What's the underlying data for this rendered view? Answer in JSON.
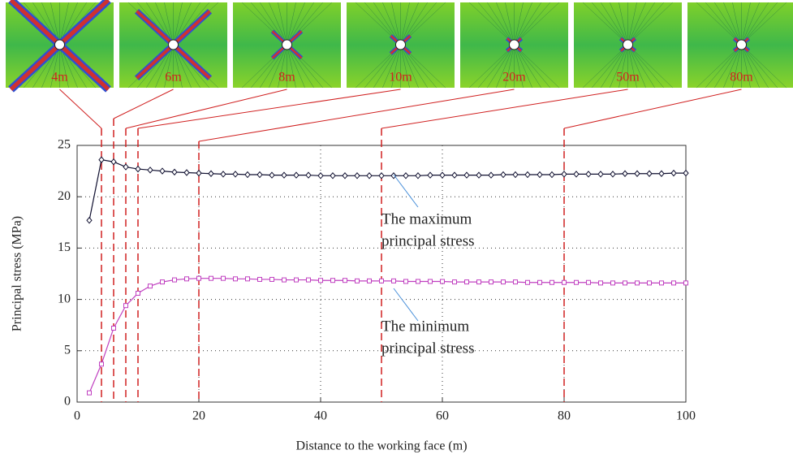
{
  "chart_data": {
    "type": "line",
    "x_label": "Distance to the working face (m)",
    "y_label": "Principal stress (MPa)",
    "x": [
      2,
      4,
      6,
      8,
      10,
      12,
      14,
      16,
      18,
      20,
      22,
      24,
      26,
      28,
      30,
      32,
      34,
      36,
      38,
      40,
      42,
      44,
      46,
      48,
      50,
      52,
      54,
      56,
      58,
      60,
      62,
      64,
      66,
      68,
      70,
      72,
      74,
      76,
      78,
      80,
      82,
      84,
      86,
      88,
      90,
      92,
      94,
      96,
      98,
      100
    ],
    "series": [
      {
        "color": "#101030",
        "marker": "diamond",
        "values": [
          17.7,
          23.6,
          23.4,
          22.9,
          22.7,
          22.6,
          22.5,
          22.4,
          22.35,
          22.3,
          22.25,
          22.2,
          22.2,
          22.15,
          22.15,
          22.1,
          22.1,
          22.1,
          22.1,
          22.05,
          22.05,
          22.05,
          22.05,
          22.05,
          22.05,
          22.05,
          22.05,
          22.05,
          22.1,
          22.1,
          22.1,
          22.1,
          22.1,
          22.1,
          22.15,
          22.15,
          22.15,
          22.15,
          22.15,
          22.2,
          22.2,
          22.2,
          22.2,
          22.2,
          22.25,
          22.25,
          22.25,
          22.25,
          22.3,
          22.3
        ]
      },
      {
        "color": "#c040c0",
        "marker": "square",
        "values": [
          0.9,
          3.7,
          7.2,
          9.4,
          10.6,
          11.3,
          11.7,
          11.9,
          12.0,
          12.05,
          12.05,
          12.05,
          12.0,
          12.0,
          11.95,
          11.95,
          11.9,
          11.9,
          11.9,
          11.85,
          11.85,
          11.85,
          11.8,
          11.8,
          11.8,
          11.8,
          11.75,
          11.75,
          11.75,
          11.75,
          11.7,
          11.7,
          11.7,
          11.7,
          11.7,
          11.7,
          11.65,
          11.65,
          11.65,
          11.65,
          11.65,
          11.65,
          11.6,
          11.6,
          11.6,
          11.6,
          11.6,
          11.6,
          11.6,
          11.6
        ]
      }
    ],
    "series_notes": [
      {
        "lines": [
          "The maximum",
          "principal stress"
        ]
      },
      {
        "lines": [
          "The minimum",
          "principal stress"
        ]
      }
    ],
    "annotations": [
      {
        "x": 4,
        "label": "4m"
      },
      {
        "x": 6,
        "label": "6m"
      },
      {
        "x": 8,
        "label": "8m"
      },
      {
        "x": 10,
        "label": "10m"
      },
      {
        "x": 20,
        "label": "20m"
      },
      {
        "x": 50,
        "label": "50m"
      },
      {
        "x": 80,
        "label": "80m"
      }
    ],
    "xlim": [
      0,
      100
    ],
    "ylim": [
      0,
      25
    ],
    "xticks": [
      0,
      20,
      40,
      60,
      80,
      100
    ],
    "yticks": [
      0,
      5,
      10,
      15,
      20,
      25
    ],
    "grid": true
  }
}
